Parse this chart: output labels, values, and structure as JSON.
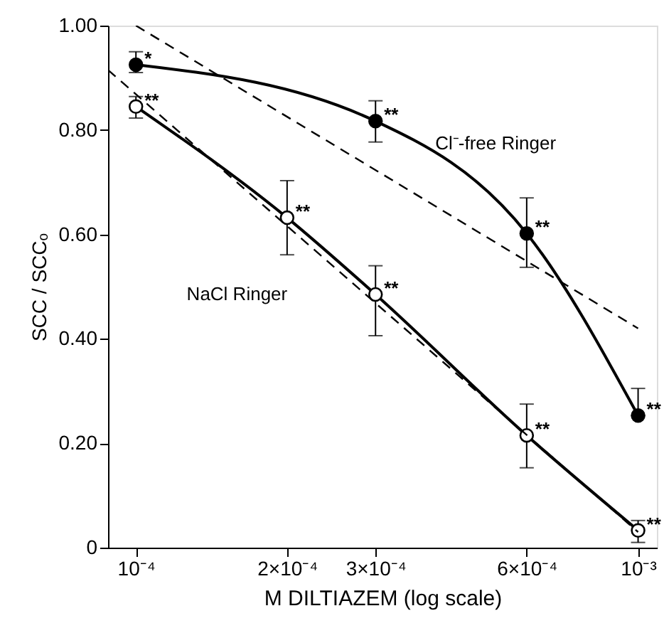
{
  "chart_data": {
    "type": "line",
    "xlabel": "M DILTIAZEM (log scale)",
    "ylabel": "SCC / SCCₒ",
    "log": "x",
    "xlim": [
      8.8e-05,
      0.00109
    ],
    "ylim": [
      0,
      1.0
    ],
    "xticks": [
      {
        "value": 0.0001,
        "label": "10⁻⁴"
      },
      {
        "value": 0.0002,
        "label": "2×10⁻⁴"
      },
      {
        "value": 0.0003,
        "label": "3×10⁻⁴"
      },
      {
        "value": 0.0006,
        "label": "6×10⁻⁴"
      },
      {
        "value": 0.001,
        "label": "10⁻³"
      }
    ],
    "yticks": [
      0,
      {
        "value": 0.2,
        "label": "0.20"
      },
      {
        "value": 0.4,
        "label": "0.40"
      },
      {
        "value": 0.6,
        "label": "0.60"
      },
      {
        "value": 0.8,
        "label": "0.80"
      },
      {
        "value": 1.0,
        "label": "1.00"
      }
    ],
    "grid": false,
    "marker": "circle",
    "line_style": "solid",
    "series": [
      {
        "name": "Cl⁻-free Ringer",
        "color": "#000000",
        "x": [
          0.0001,
          0.0003,
          0.0006,
          0.001
        ],
        "values": [
          0.925,
          0.817,
          0.602,
          0.253
        ],
        "errors": [
          [
            0.91,
            0.95
          ],
          [
            0.777,
            0.856
          ],
          [
            0.537,
            0.67
          ],
          [
            0.253,
            0.305
          ]
        ]
      },
      {
        "name": "NaCl Ringer",
        "color": "#000000",
        "x": [
          0.0001,
          0.0002,
          0.0003,
          0.0006,
          0.001
        ],
        "values": [
          0.845,
          0.632,
          0.485,
          0.215,
          0.033
        ],
        "errors": [
          [
            0.823,
            0.864
          ],
          [
            0.561,
            0.703
          ],
          [
            0.406,
            0.54
          ],
          [
            0.153,
            0.275
          ],
          [
            0.01,
            0.052
          ]
        ]
      },
      {
        "type": "line",
        "color": "#000000",
        "line_style": "dashed",
        "marker": "none",
        "x": [
          0.0001,
          0.001
        ],
        "values": [
          1.0,
          0.42
        ]
      },
      {
        "type": "line",
        "color": "#000000",
        "line_style": "dashed",
        "marker": "none",
        "x": [
          8.8e-05,
          0.001
        ],
        "values": [
          0.915,
          0.03
        ]
      }
    ],
    "annotations": [
      {
        "text": "*",
        "x": 0.0001,
        "y": 0.925
      },
      {
        "text": "**",
        "x": 0.0003,
        "y": 0.817
      },
      {
        "text": "**",
        "x": 0.0006,
        "y": 0.602
      },
      {
        "text": "**",
        "x": 0.001,
        "y": 0.253
      },
      {
        "text": "**",
        "x": 0.0001,
        "y": 0.845
      },
      {
        "text": "**",
        "x": 0.0002,
        "y": 0.632
      },
      {
        "text": "**",
        "x": 0.0003,
        "y": 0.485
      },
      {
        "text": "**",
        "x": 0.0006,
        "y": 0.215
      },
      {
        "text": "**",
        "x": 0.001,
        "y": 0.033
      }
    ]
  }
}
